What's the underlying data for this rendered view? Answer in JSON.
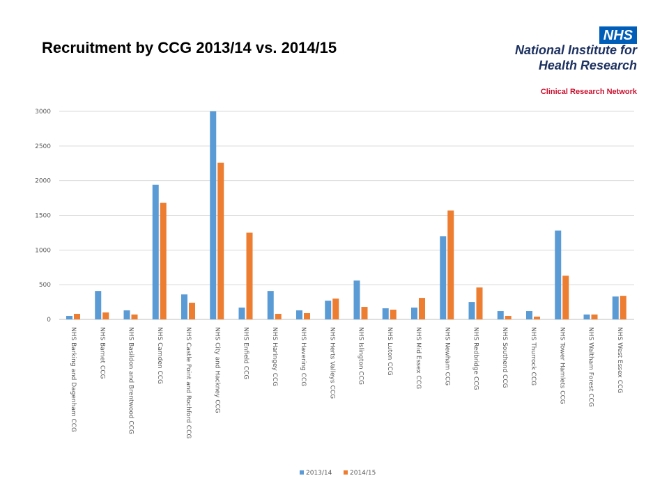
{
  "header": {
    "title": "Recruitment by CCG 2013/14 vs. 2014/15"
  },
  "logo": {
    "nhs": "NHS",
    "line1": "National Institute for",
    "line2": "Health Research",
    "line3": "Clinical Research Network",
    "colors": {
      "nhs_blue": "#005eb8",
      "navy": "#1d3160",
      "red": "#c8102e"
    }
  },
  "chart_data": {
    "type": "bar",
    "title": "",
    "xlabel": "",
    "ylabel": "",
    "ylim": [
      0,
      3000
    ],
    "yticks": [
      0,
      500,
      1000,
      1500,
      2000,
      2500,
      3000
    ],
    "grid": true,
    "legend_position": "bottom",
    "categories": [
      "NHS Barking and Dagenham CCG",
      "NHS Barnet CCG",
      "NHS Basildon and Brentwood CCG",
      "NHS Camden CCG",
      "NHS Castle Point and Rochford CCG",
      "NHS City and Hackney CCG",
      "NHS Enfield CCG",
      "NHS Haringey CCG",
      "NHS Havering CCG",
      "NHS Herts Valleys CCG",
      "NHS Islington CCG",
      "NHS Luton CCG",
      "NHS Mid Essex CCG",
      "NHS Newham CCG",
      "NHS Redbridge CCG",
      "NHS Southend CCG",
      "NHS Thurrock CCG",
      "NHS Tower Hamlets CCG",
      "NHS Waltham Forest CCG",
      "NHS West Essex CCG"
    ],
    "series": [
      {
        "name": "2013/14",
        "color": "#5b9bd5",
        "values": [
          50,
          410,
          130,
          1940,
          360,
          3000,
          170,
          410,
          130,
          270,
          560,
          160,
          170,
          1200,
          250,
          120,
          120,
          1280,
          70,
          330
        ]
      },
      {
        "name": "2014/15",
        "color": "#ed7d31",
        "values": [
          80,
          100,
          70,
          1680,
          240,
          2260,
          1250,
          80,
          90,
          300,
          180,
          140,
          310,
          1570,
          460,
          50,
          40,
          630,
          70,
          340
        ]
      }
    ]
  }
}
